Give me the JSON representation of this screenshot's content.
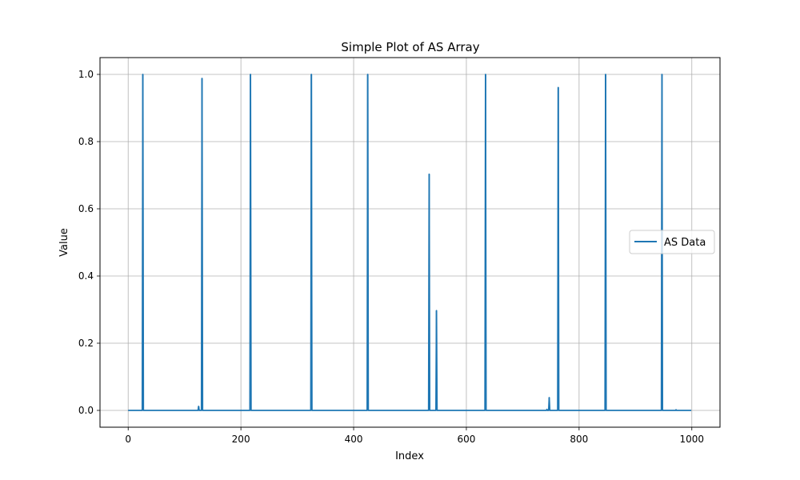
{
  "chart_data": {
    "type": "line",
    "title": "Simple Plot of AS Array",
    "xlabel": "Index",
    "ylabel": "Value",
    "xlim": [
      -50,
      1050
    ],
    "ylim": [
      -0.05,
      1.05
    ],
    "xticks": [
      0,
      200,
      400,
      600,
      800,
      1000
    ],
    "yticks": [
      0.0,
      0.2,
      0.4,
      0.6,
      0.8,
      1.0
    ],
    "xtick_labels": [
      "0",
      "200",
      "400",
      "600",
      "800",
      "1000"
    ],
    "ytick_labels": [
      "0.0",
      "0.2",
      "0.4",
      "0.6",
      "0.8",
      "1.0"
    ],
    "grid": true,
    "legend_position": "center-right",
    "x_range": [
      0,
      999
    ],
    "baseline": 0.0,
    "series": [
      {
        "name": "AS Data",
        "color": "#1f77b4",
        "spikes": [
          {
            "x": 26,
            "y": 1.0
          },
          {
            "x": 125,
            "y": 0.012
          },
          {
            "x": 131,
            "y": 0.988
          },
          {
            "x": 217,
            "y": 1.0
          },
          {
            "x": 325,
            "y": 1.0
          },
          {
            "x": 425,
            "y": 1.0
          },
          {
            "x": 534,
            "y": 0.703
          },
          {
            "x": 547,
            "y": 0.297
          },
          {
            "x": 634,
            "y": 1.0
          },
          {
            "x": 743,
            "y": 0.003
          },
          {
            "x": 747,
            "y": 0.038
          },
          {
            "x": 763,
            "y": 0.961
          },
          {
            "x": 847,
            "y": 1.0
          },
          {
            "x": 947,
            "y": 1.0
          },
          {
            "x": 972,
            "y": 0.002
          }
        ]
      }
    ]
  }
}
